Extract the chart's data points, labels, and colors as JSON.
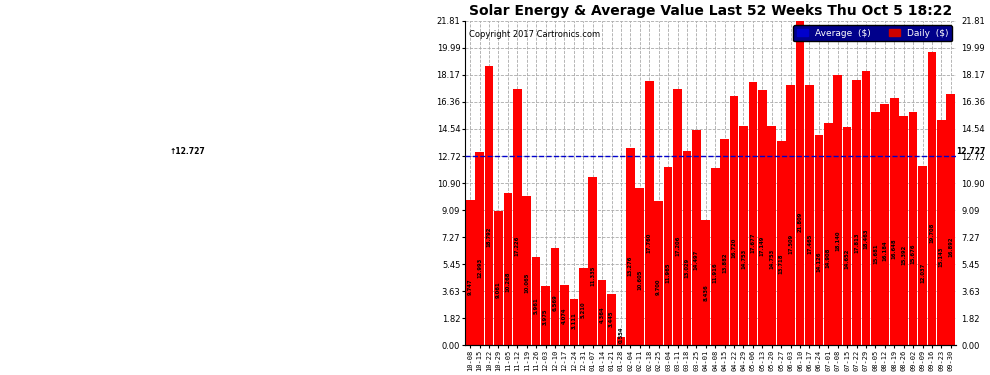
{
  "title": "Solar Energy & Average Value Last 52 Weeks Thu Oct 5 18:22",
  "copyright": "Copyright 2017 Cartronics.com",
  "average_line": 12.727,
  "average_label": "12.727",
  "bar_color": "#ff0000",
  "avg_line_color": "#0000cd",
  "background_color": "#ffffff",
  "grid_color": "#aaaaaa",
  "yticks": [
    0.0,
    1.82,
    3.63,
    5.45,
    7.27,
    9.09,
    10.9,
    12.72,
    14.54,
    16.36,
    18.17,
    19.99,
    21.81
  ],
  "legend_avg_color": "#0000cc",
  "legend_daily_color": "#cc0000",
  "categories": [
    "10-08",
    "10-15",
    "10-22",
    "10-29",
    "11-05",
    "11-12",
    "11-19",
    "11-26",
    "12-03",
    "12-10",
    "12-17",
    "12-24",
    "12-31",
    "01-07",
    "01-14",
    "01-21",
    "01-28",
    "02-04",
    "02-11",
    "02-18",
    "02-25",
    "03-04",
    "03-11",
    "03-18",
    "03-25",
    "04-01",
    "04-08",
    "04-15",
    "04-22",
    "04-29",
    "05-06",
    "05-13",
    "05-20",
    "05-27",
    "06-03",
    "06-10",
    "06-17",
    "06-24",
    "07-01",
    "07-08",
    "07-15",
    "07-22",
    "07-29",
    "08-05",
    "08-12",
    "08-19",
    "08-26",
    "09-02",
    "09-09",
    "09-16",
    "09-23",
    "09-30"
  ],
  "values": [
    9.747,
    12.993,
    18.792,
    9.061,
    10.268,
    17.226,
    10.065,
    5.961,
    3.975,
    6.569,
    4.074,
    3.111,
    5.21,
    11.335,
    4.364,
    3.445,
    0.554,
    13.276,
    10.605,
    17.76,
    9.7,
    11.965,
    17.206,
    13.029,
    14.497,
    8.436,
    11.916,
    13.882,
    16.72,
    14.753,
    17.677,
    17.149,
    14.753,
    13.718,
    17.509,
    21.809,
    17.465,
    14.126,
    14.908,
    18.14,
    14.652,
    17.813,
    18.463,
    15.681,
    16.184,
    16.648,
    15.392,
    15.676,
    12.037,
    19.708,
    15.143,
    16.892
  ]
}
